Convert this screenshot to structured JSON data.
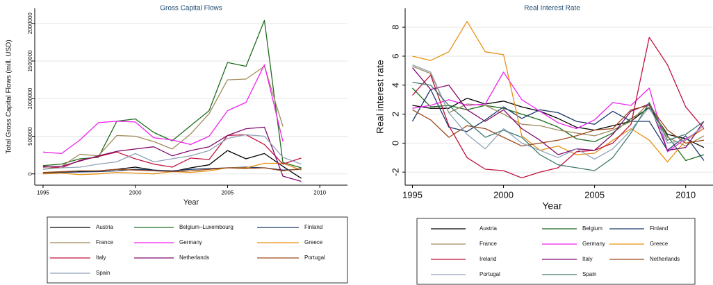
{
  "chart_data": [
    {
      "type": "line",
      "title": "Gross Capital Flows",
      "x_label": "Year",
      "y_label": "Total Gross Capital Flows (mill. USD)",
      "x": [
        1995,
        1996,
        1997,
        1998,
        1999,
        2000,
        2001,
        2002,
        2003,
        2004,
        2005,
        2006,
        2007,
        2008,
        2009
      ],
      "xlim": [
        1994.55,
        2011.5
      ],
      "xticks": [
        1995,
        2000,
        2005,
        2010
      ],
      "ylim": [
        -150000,
        2200000
      ],
      "yticks": [
        0,
        500000,
        1000000,
        1500000,
        2000000
      ],
      "grid": true,
      "series": [
        {
          "name": "Austria",
          "color": "#000000",
          "values": [
            15000,
            20000,
            30000,
            40000,
            60000,
            90000,
            50000,
            30000,
            80000,
            120000,
            310000,
            200000,
            270000,
            100000,
            -60000
          ]
        },
        {
          "name": "Belgium–Luxembourg",
          "color": "#1d6b1d",
          "values": [
            110000,
            130000,
            200000,
            220000,
            700000,
            730000,
            550000,
            440000,
            640000,
            840000,
            1480000,
            1430000,
            2040000,
            150000,
            80000
          ]
        },
        {
          "name": "Finland",
          "color": "#1a3a6b",
          "values": [
            10000,
            20000,
            25000,
            30000,
            40000,
            60000,
            50000,
            40000,
            60000,
            70000,
            80000,
            90000,
            80000,
            50000,
            60000
          ]
        },
        {
          "name": "France",
          "color": "#a08a5a",
          "values": [
            60000,
            100000,
            260000,
            240000,
            510000,
            500000,
            430000,
            330000,
            530000,
            800000,
            1250000,
            1260000,
            1430000,
            630000,
            null
          ]
        },
        {
          "name": "Germany",
          "color": "#ee22ee",
          "values": [
            290000,
            270000,
            450000,
            680000,
            700000,
            690000,
            480000,
            450000,
            390000,
            500000,
            840000,
            950000,
            1450000,
            430000,
            null
          ]
        },
        {
          "name": "Greece",
          "color": "#e8900f",
          "values": [
            0,
            10000,
            -10000,
            0,
            20000,
            10000,
            0,
            30000,
            20000,
            40000,
            80000,
            80000,
            140000,
            140000,
            50000
          ]
        },
        {
          "name": "Italy",
          "color": "#c0103c",
          "values": [
            100000,
            80000,
            180000,
            230000,
            290000,
            200000,
            130000,
            90000,
            210000,
            190000,
            510000,
            520000,
            390000,
            130000,
            210000
          ]
        },
        {
          "name": "Netherlands",
          "color": "#800a6e",
          "values": [
            90000,
            100000,
            170000,
            240000,
            300000,
            330000,
            360000,
            240000,
            310000,
            360000,
            510000,
            600000,
            620000,
            -30000,
            -100000
          ]
        },
        {
          "name": "Portugal",
          "color": "#9c4a1c",
          "values": [
            20000,
            30000,
            40000,
            40000,
            60000,
            50000,
            40000,
            30000,
            40000,
            60000,
            80000,
            70000,
            80000,
            40000,
            70000
          ]
        },
        {
          "name": "Spain",
          "color": "#8fa2b8",
          "values": [
            60000,
            80000,
            90000,
            130000,
            160000,
            270000,
            160000,
            200000,
            240000,
            310000,
            470000,
            520000,
            500000,
            220000,
            130000
          ]
        }
      ]
    },
    {
      "type": "line",
      "title": "Real Interest Rate",
      "x_label": "Year",
      "y_label": "Real interest rate",
      "x": [
        1995,
        1996,
        1997,
        1998,
        1999,
        2000,
        2001,
        2002,
        2003,
        2004,
        2005,
        2006,
        2007,
        2008,
        2009,
        2010,
        2011
      ],
      "xlim": [
        1994.6,
        2011.5
      ],
      "xticks": [
        1995,
        2000,
        2005,
        2010
      ],
      "ylim": [
        -2.9,
        9.3
      ],
      "yticks": [
        -2,
        0,
        2,
        4,
        6,
        8
      ],
      "grid": true,
      "series": [
        {
          "name": "Austria",
          "color": "#000000",
          "values": [
            2.6,
            2.4,
            2.4,
            3.1,
            2.7,
            2.9,
            2.5,
            2.2,
            1.7,
            1.1,
            0.9,
            1.2,
            1.5,
            2.5,
            0.6,
            0.3,
            -0.3
          ]
        },
        {
          "name": "Belgium",
          "color": "#1d6b1d",
          "values": [
            3.8,
            2.5,
            2.6,
            2.3,
            2.6,
            2.4,
            2.0,
            1.6,
            1.1,
            0.3,
            0.1,
            0.7,
            1.7,
            2.4,
            0.5,
            -1.2,
            -0.8
          ]
        },
        {
          "name": "Finland",
          "color": "#1a3a6b",
          "values": [
            1.5,
            3.7,
            1.1,
            0.8,
            1.6,
            2.5,
            1.7,
            2.3,
            2.1,
            1.5,
            1.3,
            2.2,
            1.5,
            1.5,
            -0.5,
            0.5,
            -1.2
          ]
        },
        {
          "name": "France",
          "color": "#a08a5a",
          "values": [
            5.3,
            4.8,
            2.1,
            2.7,
            2.6,
            2.0,
            1.3,
            1.2,
            0.9,
            0.7,
            0.5,
            0.9,
            1.5,
            2.8,
            0.4,
            -0.2,
            0.5
          ]
        },
        {
          "name": "Germany",
          "color": "#ee22ee",
          "values": [
            2.4,
            2.6,
            3.0,
            2.6,
            2.7,
            4.9,
            3.0,
            2.2,
            1.4,
            1.0,
            1.6,
            2.8,
            2.6,
            3.8,
            -0.6,
            0.3,
            1.0
          ]
        },
        {
          "name": "Greece",
          "color": "#e8900f",
          "values": [
            6.0,
            5.7,
            6.3,
            8.4,
            6.3,
            6.1,
            0.5,
            -0.5,
            -0.2,
            -0.8,
            -0.7,
            0.2,
            1.0,
            0.2,
            -1.3,
            0.2,
            1.0
          ]
        },
        {
          "name": "Ireland",
          "color": "#c0103c",
          "values": [
            3.3,
            4.7,
            1.2,
            -1.0,
            -1.8,
            -1.9,
            -2.4,
            -2.0,
            -1.7,
            -0.6,
            -0.5,
            0.0,
            1.3,
            7.3,
            5.4,
            2.5,
            1.0
          ]
        },
        {
          "name": "Italy",
          "color": "#800a6e",
          "values": [
            5.2,
            3.7,
            4.0,
            2.3,
            1.5,
            2.3,
            1.0,
            0.2,
            -0.8,
            -0.4,
            -0.5,
            0.6,
            2.2,
            2.7,
            -0.5,
            -0.3,
            1.5
          ]
        },
        {
          "name": "Netherlands",
          "color": "#9c4a1c",
          "values": [
            2.3,
            1.6,
            0.4,
            1.2,
            1.0,
            0.4,
            -0.2,
            0.0,
            0.2,
            0.5,
            0.9,
            1.0,
            2.3,
            2.6,
            0.9,
            0.0,
            0.2
          ]
        },
        {
          "name": "Portugal",
          "color": "#8fa2b8",
          "values": [
            5.4,
            4.9,
            2.1,
            0.6,
            -0.4,
            1.0,
            0.0,
            -0.5,
            -1.0,
            -0.4,
            -1.1,
            -0.4,
            0.9,
            2.5,
            0.0,
            0.2,
            1.2
          ]
        },
        {
          "name": "Spain",
          "color": "#3f7a6e",
          "values": [
            4.2,
            4.0,
            2.6,
            1.5,
            0.4,
            0.9,
            0.4,
            -0.8,
            -1.5,
            -1.7,
            -1.9,
            -1.0,
            0.7,
            2.8,
            0.2,
            0.6,
            1.5
          ]
        }
      ]
    }
  ]
}
